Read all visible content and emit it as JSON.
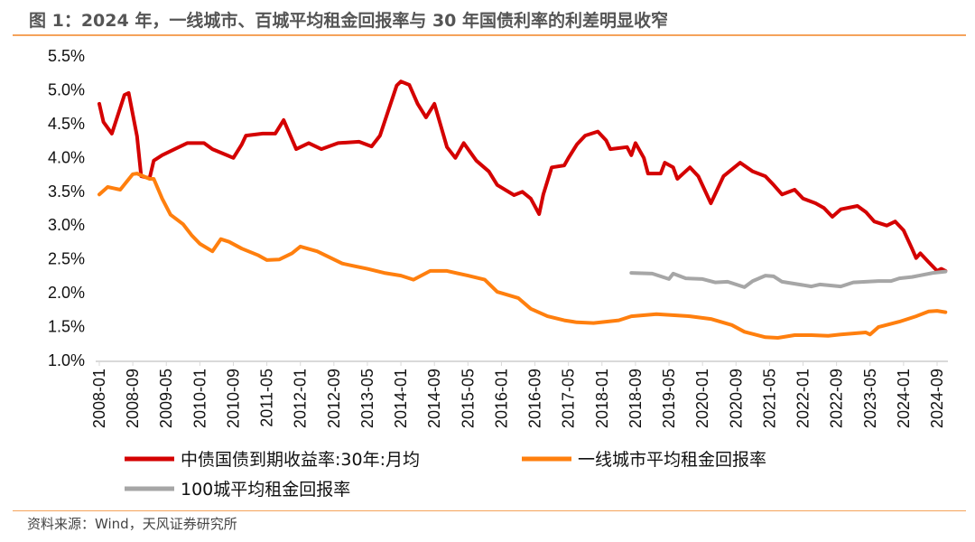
{
  "title": "图 1：2024 年，一线城市、百城平均租金回报率与 30 年国债利率的利差明显收窄",
  "source": "资料来源：Wind，天风证券研究所",
  "chart_data": {
    "type": "line",
    "title": "图 1：2024 年，一线城市、百城平均租金回报率与 30 年国债利率的利差明显收窄",
    "xlabel": "",
    "ylabel": "",
    "ylim": [
      1.0,
      5.5
    ],
    "yticks": [
      "5.5%",
      "5.0%",
      "4.5%",
      "4.0%",
      "3.5%",
      "3.0%",
      "2.5%",
      "2.0%",
      "1.5%",
      "1.0%"
    ],
    "xlim": [
      "2008-01",
      "2024-11"
    ],
    "xticks": [
      "2008-01",
      "2008-09",
      "2009-05",
      "2010-01",
      "2010-09",
      "2011-05",
      "2012-01",
      "2012-09",
      "2013-05",
      "2014-01",
      "2014-09",
      "2015-05",
      "2016-01",
      "2016-09",
      "2017-05",
      "2018-01",
      "2018-09",
      "2019-05",
      "2020-01",
      "2020-09",
      "2021-05",
      "2022-01",
      "2022-09",
      "2023-05",
      "2024-01",
      "2024-09"
    ],
    "grid": false,
    "legend_position": "bottom",
    "series": [
      {
        "name": "中债国债到期收益率:30年:月均",
        "color": "#d40000",
        "points": [
          [
            "2008-01",
            4.78
          ],
          [
            "2008-02",
            4.51
          ],
          [
            "2008-04",
            4.34
          ],
          [
            "2008-07",
            4.91
          ],
          [
            "2008-08",
            4.94
          ],
          [
            "2008-10",
            4.3
          ],
          [
            "2008-11",
            3.71
          ],
          [
            "2009-01",
            3.68
          ],
          [
            "2009-02",
            3.94
          ],
          [
            "2009-04",
            4.02
          ],
          [
            "2009-07",
            4.11
          ],
          [
            "2009-10",
            4.2
          ],
          [
            "2010-02",
            4.2
          ],
          [
            "2010-04",
            4.11
          ],
          [
            "2010-09",
            3.98
          ],
          [
            "2010-11",
            4.18
          ],
          [
            "2010-12",
            4.31
          ],
          [
            "2011-04",
            4.34
          ],
          [
            "2011-07",
            4.34
          ],
          [
            "2011-09",
            4.54
          ],
          [
            "2011-12",
            4.11
          ],
          [
            "2012-03",
            4.2
          ],
          [
            "2012-06",
            4.11
          ],
          [
            "2012-10",
            4.2
          ],
          [
            "2013-03",
            4.22
          ],
          [
            "2013-06",
            4.15
          ],
          [
            "2013-08",
            4.31
          ],
          [
            "2013-12",
            5.05
          ],
          [
            "2014-01",
            5.11
          ],
          [
            "2014-03",
            5.06
          ],
          [
            "2014-05",
            4.78
          ],
          [
            "2014-07",
            4.58
          ],
          [
            "2014-09",
            4.78
          ],
          [
            "2014-12",
            4.14
          ],
          [
            "2015-02",
            3.98
          ],
          [
            "2015-04",
            4.2
          ],
          [
            "2015-07",
            3.94
          ],
          [
            "2015-10",
            3.78
          ],
          [
            "2015-12",
            3.58
          ],
          [
            "2016-04",
            3.43
          ],
          [
            "2016-06",
            3.48
          ],
          [
            "2016-08",
            3.38
          ],
          [
            "2016-10",
            3.15
          ],
          [
            "2016-11",
            3.44
          ],
          [
            "2017-01",
            3.84
          ],
          [
            "2017-04",
            3.87
          ],
          [
            "2017-05",
            3.98
          ],
          [
            "2017-07",
            4.18
          ],
          [
            "2017-09",
            4.31
          ],
          [
            "2017-12",
            4.37
          ],
          [
            "2018-02",
            4.24
          ],
          [
            "2018-03",
            4.11
          ],
          [
            "2018-07",
            4.14
          ],
          [
            "2018-08",
            4.02
          ],
          [
            "2018-09",
            4.2
          ],
          [
            "2018-11",
            3.98
          ],
          [
            "2018-12",
            3.75
          ],
          [
            "2019-03",
            3.75
          ],
          [
            "2019-04",
            3.91
          ],
          [
            "2019-06",
            3.84
          ],
          [
            "2019-07",
            3.67
          ],
          [
            "2019-10",
            3.84
          ],
          [
            "2019-12",
            3.71
          ],
          [
            "2020-03",
            3.31
          ],
          [
            "2020-06",
            3.71
          ],
          [
            "2020-10",
            3.91
          ],
          [
            "2021-01",
            3.78
          ],
          [
            "2021-04",
            3.71
          ],
          [
            "2021-06",
            3.58
          ],
          [
            "2021-08",
            3.44
          ],
          [
            "2021-11",
            3.51
          ],
          [
            "2022-01",
            3.38
          ],
          [
            "2022-04",
            3.31
          ],
          [
            "2022-06",
            3.24
          ],
          [
            "2022-08",
            3.11
          ],
          [
            "2022-10",
            3.22
          ],
          [
            "2023-02",
            3.27
          ],
          [
            "2023-04",
            3.18
          ],
          [
            "2023-06",
            3.04
          ],
          [
            "2023-09",
            2.98
          ],
          [
            "2023-11",
            3.04
          ],
          [
            "2024-01",
            2.91
          ],
          [
            "2024-03",
            2.64
          ],
          [
            "2024-04",
            2.5
          ],
          [
            "2024-05",
            2.57
          ],
          [
            "2024-07",
            2.44
          ],
          [
            "2024-09",
            2.31
          ],
          [
            "2024-10",
            2.34
          ],
          [
            "2024-11",
            2.31
          ]
        ]
      },
      {
        "name": "一线城市平均租金回报率",
        "color": "#ff7f0e",
        "points": [
          [
            "2008-01",
            3.44
          ],
          [
            "2008-03",
            3.55
          ],
          [
            "2008-06",
            3.51
          ],
          [
            "2008-09",
            3.74
          ],
          [
            "2008-10",
            3.75
          ],
          [
            "2009-01",
            3.67
          ],
          [
            "2009-02",
            3.67
          ],
          [
            "2009-04",
            3.38
          ],
          [
            "2009-06",
            3.14
          ],
          [
            "2009-09",
            3.0
          ],
          [
            "2009-11",
            2.84
          ],
          [
            "2010-01",
            2.71
          ],
          [
            "2010-04",
            2.6
          ],
          [
            "2010-06",
            2.78
          ],
          [
            "2010-08",
            2.74
          ],
          [
            "2010-11",
            2.64
          ],
          [
            "2011-03",
            2.54
          ],
          [
            "2011-05",
            2.47
          ],
          [
            "2011-08",
            2.48
          ],
          [
            "2011-11",
            2.57
          ],
          [
            "2012-01",
            2.67
          ],
          [
            "2012-05",
            2.6
          ],
          [
            "2012-08",
            2.51
          ],
          [
            "2012-11",
            2.42
          ],
          [
            "2013-02",
            2.38
          ],
          [
            "2013-05",
            2.34
          ],
          [
            "2013-09",
            2.28
          ],
          [
            "2014-01",
            2.24
          ],
          [
            "2014-04",
            2.18
          ],
          [
            "2014-08",
            2.31
          ],
          [
            "2014-12",
            2.31
          ],
          [
            "2015-05",
            2.24
          ],
          [
            "2015-09",
            2.18
          ],
          [
            "2015-12",
            2.0
          ],
          [
            "2016-05",
            1.91
          ],
          [
            "2016-08",
            1.75
          ],
          [
            "2016-12",
            1.64
          ],
          [
            "2017-04",
            1.58
          ],
          [
            "2017-07",
            1.55
          ],
          [
            "2017-11",
            1.54
          ],
          [
            "2018-05",
            1.58
          ],
          [
            "2018-08",
            1.64
          ],
          [
            "2019-02",
            1.67
          ],
          [
            "2019-10",
            1.64
          ],
          [
            "2020-03",
            1.6
          ],
          [
            "2020-08",
            1.51
          ],
          [
            "2020-11",
            1.41
          ],
          [
            "2021-04",
            1.33
          ],
          [
            "2021-07",
            1.32
          ],
          [
            "2021-11",
            1.36
          ],
          [
            "2022-03",
            1.36
          ],
          [
            "2022-07",
            1.35
          ],
          [
            "2022-10",
            1.37
          ],
          [
            "2023-04",
            1.4
          ],
          [
            "2023-05",
            1.37
          ],
          [
            "2023-07",
            1.48
          ],
          [
            "2023-12",
            1.56
          ],
          [
            "2024-04",
            1.64
          ],
          [
            "2024-07",
            1.71
          ],
          [
            "2024-09",
            1.72
          ],
          [
            "2024-11",
            1.7
          ]
        ]
      },
      {
        "name": "100城平均租金回报率",
        "color": "#a6a6a6",
        "points": [
          [
            "2018-08",
            2.28
          ],
          [
            "2019-01",
            2.27
          ],
          [
            "2019-05",
            2.19
          ],
          [
            "2019-06",
            2.27
          ],
          [
            "2019-09",
            2.2
          ],
          [
            "2020-01",
            2.19
          ],
          [
            "2020-04",
            2.14
          ],
          [
            "2020-07",
            2.15
          ],
          [
            "2020-11",
            2.07
          ],
          [
            "2021-01",
            2.16
          ],
          [
            "2021-04",
            2.24
          ],
          [
            "2021-06",
            2.23
          ],
          [
            "2021-08",
            2.15
          ],
          [
            "2022-03",
            2.08
          ],
          [
            "2022-05",
            2.11
          ],
          [
            "2022-10",
            2.08
          ],
          [
            "2023-01",
            2.14
          ],
          [
            "2023-07",
            2.16
          ],
          [
            "2023-10",
            2.16
          ],
          [
            "2023-12",
            2.2
          ],
          [
            "2024-03",
            2.22
          ],
          [
            "2024-08",
            2.28
          ],
          [
            "2024-11",
            2.3
          ]
        ]
      }
    ]
  }
}
